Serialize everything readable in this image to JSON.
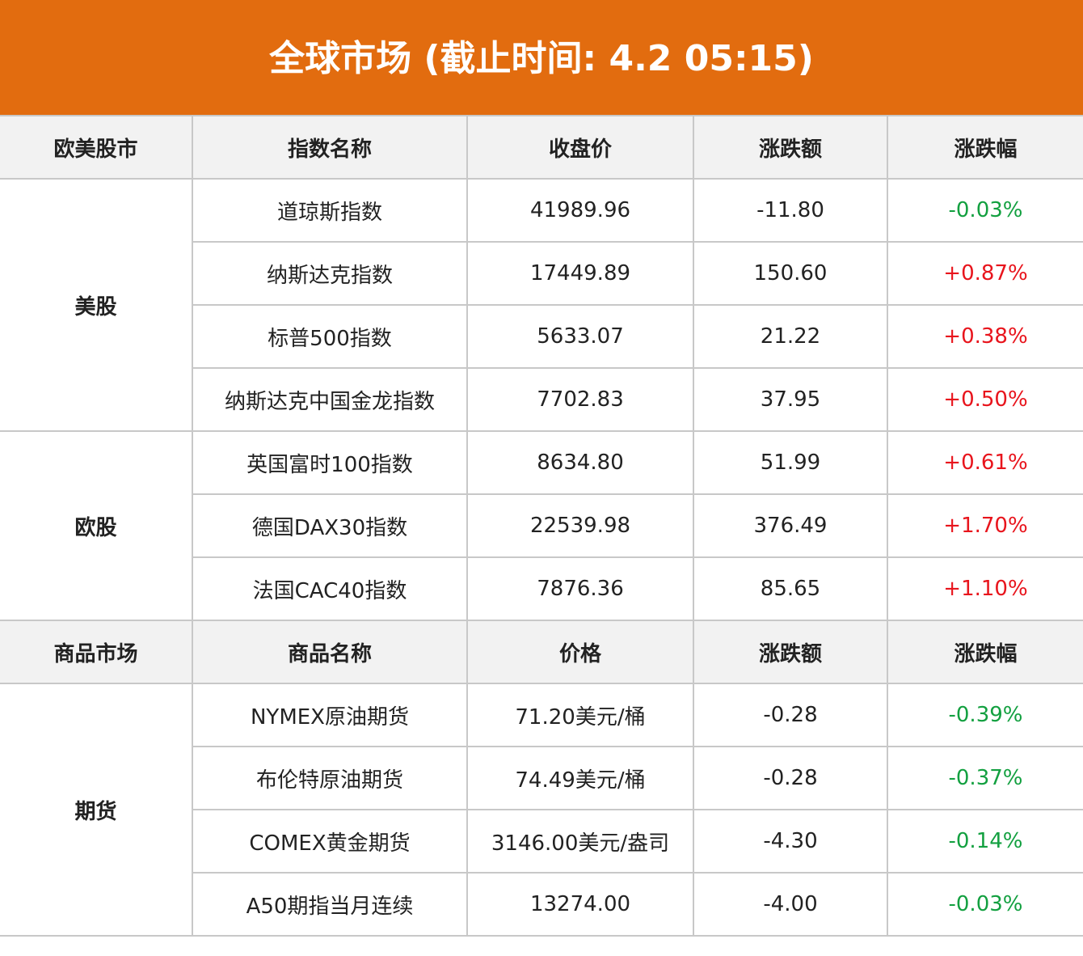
{
  "title": "全球市场 (截止时间: 4.2 05:15)",
  "colors": {
    "header_bg": "#E26C0F",
    "up": "#e8141c",
    "down": "#13a040"
  },
  "sections": [
    {
      "headers": [
        "欧美股市",
        "指数名称",
        "收盘价",
        "涨跌额",
        "涨跌幅"
      ],
      "groups": [
        {
          "name": "美股",
          "rows": [
            {
              "name": "道琼斯指数",
              "price": "41989.96",
              "change": "-11.80",
              "pct": "-0.03%",
              "dir": "down"
            },
            {
              "name": "纳斯达克指数",
              "price": "17449.89",
              "change": "150.60",
              "pct": "+0.87%",
              "dir": "up"
            },
            {
              "name": "标普500指数",
              "price": "5633.07",
              "change": "21.22",
              "pct": "+0.38%",
              "dir": "up"
            },
            {
              "name": "纳斯达克中国金龙指数",
              "price": "7702.83",
              "change": "37.95",
              "pct": "+0.50%",
              "dir": "up"
            }
          ]
        },
        {
          "name": "欧股",
          "rows": [
            {
              "name": "英国富时100指数",
              "price": "8634.80",
              "change": "51.99",
              "pct": "+0.61%",
              "dir": "up"
            },
            {
              "name": "德国DAX30指数",
              "price": "22539.98",
              "change": "376.49",
              "pct": "+1.70%",
              "dir": "up"
            },
            {
              "name": "法国CAC40指数",
              "price": "7876.36",
              "change": "85.65",
              "pct": "+1.10%",
              "dir": "up"
            }
          ]
        }
      ]
    },
    {
      "headers": [
        "商品市场",
        "商品名称",
        "价格",
        "涨跌额",
        "涨跌幅"
      ],
      "groups": [
        {
          "name": "期货",
          "rows": [
            {
              "name": "NYMEX原油期货",
              "price": "71.20美元/桶",
              "change": "-0.28",
              "pct": "-0.39%",
              "dir": "down"
            },
            {
              "name": "布伦特原油期货",
              "price": "74.49美元/桶",
              "change": "-0.28",
              "pct": "-0.37%",
              "dir": "down"
            },
            {
              "name": "COMEX黄金期货",
              "price": "3146.00美元/盎司",
              "change": "-4.30",
              "pct": "-0.14%",
              "dir": "down"
            },
            {
              "name": "A50期指当月连续",
              "price": "13274.00",
              "change": "-4.00",
              "pct": "-0.03%",
              "dir": "down"
            }
          ]
        }
      ]
    }
  ]
}
